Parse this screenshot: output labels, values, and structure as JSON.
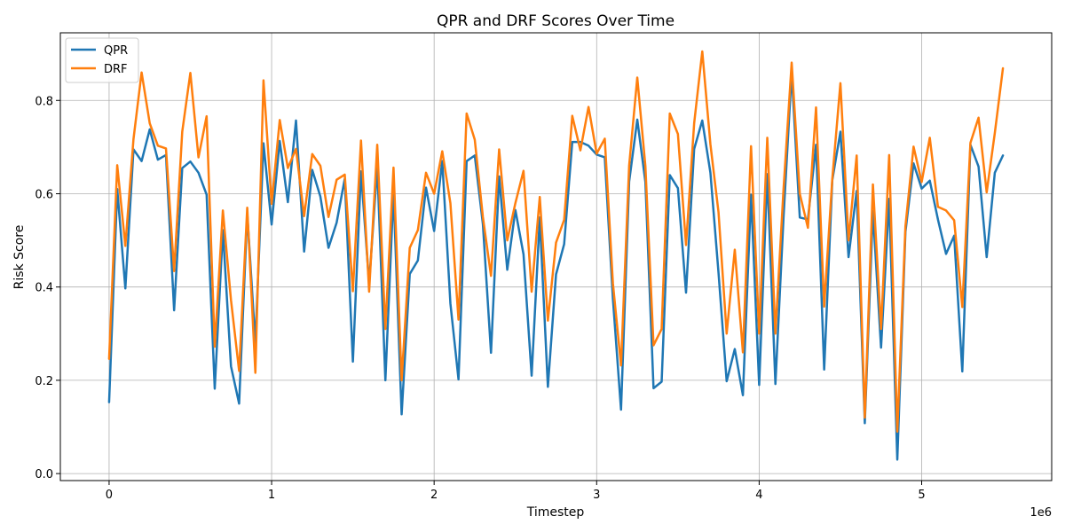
{
  "chart_data": {
    "type": "line",
    "title": "QPR and DRF Scores Over Time",
    "xlabel": "Timestep",
    "ylabel": "Risk Score",
    "x_offset_label": "1e6",
    "xlim": [
      -300000,
      5800000
    ],
    "ylim": [
      -0.015,
      0.945
    ],
    "x_ticks": [
      0,
      1,
      2,
      3,
      4,
      5
    ],
    "y_ticks": [
      0.0,
      0.2,
      0.4,
      0.6,
      0.8
    ],
    "y_tick_labels": [
      "0.0",
      "0.2",
      "0.4",
      "0.6",
      "0.8"
    ],
    "grid": true,
    "legend_position": "top-left",
    "x": [
      0,
      50000,
      100000,
      150000,
      200000,
      250000,
      300000,
      350000,
      400000,
      450000,
      500000,
      550000,
      600000,
      650000,
      700000,
      750000,
      800000,
      850000,
      900000,
      950000,
      1000000,
      1050000,
      1100000,
      1150000,
      1200000,
      1250000,
      1300000,
      1350000,
      1400000,
      1450000,
      1500000,
      1550000,
      1600000,
      1650000,
      1700000,
      1750000,
      1800000,
      1850000,
      1900000,
      1950000,
      2000000,
      2050000,
      2100000,
      2150000,
      2200000,
      2250000,
      2300000,
      2350000,
      2400000,
      2450000,
      2500000,
      2550000,
      2600000,
      2650000,
      2700000,
      2750000,
      2800000,
      2850000,
      2900000,
      2950000,
      3000000,
      3050000,
      3100000,
      3150000,
      3200000,
      3250000,
      3300000,
      3350000,
      3400000,
      3450000,
      3500000,
      3550000,
      3600000,
      3650000,
      3700000,
      3750000,
      3800000,
      3850000,
      3900000,
      3950000,
      4000000,
      4050000,
      4100000,
      4150000,
      4200000,
      4250000,
      4300000,
      4350000,
      4400000,
      4450000,
      4500000,
      4550000,
      4600000,
      4650000,
      4700000,
      4750000,
      4800000,
      4850000,
      4900000,
      4950000,
      5000000,
      5050000,
      5100000,
      5150000,
      5200000,
      5250000,
      5300000,
      5350000,
      5400000,
      5450000,
      5500000
    ],
    "series": [
      {
        "name": "QPR",
        "color": "#1f77b4",
        "values": [
          0.153,
          0.61,
          0.397,
          0.695,
          0.67,
          0.738,
          0.673,
          0.683,
          0.35,
          0.655,
          0.669,
          0.645,
          0.598,
          0.182,
          0.522,
          0.23,
          0.15,
          0.558,
          0.28,
          0.708,
          0.534,
          0.713,
          0.582,
          0.757,
          0.476,
          0.651,
          0.594,
          0.484,
          0.538,
          0.632,
          0.24,
          0.648,
          0.407,
          0.659,
          0.2,
          0.604,
          0.127,
          0.428,
          0.457,
          0.613,
          0.52,
          0.67,
          0.365,
          0.202,
          0.67,
          0.682,
          0.535,
          0.259,
          0.637,
          0.437,
          0.565,
          0.47,
          0.21,
          0.549,
          0.186,
          0.427,
          0.492,
          0.711,
          0.711,
          0.703,
          0.684,
          0.678,
          0.375,
          0.137,
          0.626,
          0.759,
          0.625,
          0.183,
          0.197,
          0.64,
          0.612,
          0.388,
          0.696,
          0.757,
          0.645,
          0.43,
          0.198,
          0.267,
          0.168,
          0.598,
          0.19,
          0.642,
          0.192,
          0.55,
          0.86,
          0.549,
          0.545,
          0.705,
          0.223,
          0.629,
          0.733,
          0.464,
          0.606,
          0.108,
          0.563,
          0.27,
          0.589,
          0.03,
          0.518,
          0.665,
          0.611,
          0.628,
          0.545,
          0.471,
          0.51,
          0.219,
          0.705,
          0.658,
          0.464,
          0.645,
          0.682
        ]
      },
      {
        "name": "DRF",
        "color": "#ff7f0e",
        "values": [
          0.246,
          0.661,
          0.488,
          0.717,
          0.86,
          0.751,
          0.703,
          0.697,
          0.434,
          0.733,
          0.859,
          0.678,
          0.766,
          0.272,
          0.564,
          0.372,
          0.22,
          0.57,
          0.216,
          0.843,
          0.578,
          0.758,
          0.655,
          0.696,
          0.552,
          0.685,
          0.66,
          0.55,
          0.63,
          0.641,
          0.391,
          0.714,
          0.39,
          0.705,
          0.31,
          0.656,
          0.2,
          0.484,
          0.522,
          0.645,
          0.6,
          0.691,
          0.58,
          0.33,
          0.772,
          0.716,
          0.55,
          0.424,
          0.695,
          0.5,
          0.58,
          0.649,
          0.39,
          0.593,
          0.328,
          0.495,
          0.544,
          0.767,
          0.693,
          0.786,
          0.686,
          0.718,
          0.408,
          0.232,
          0.66,
          0.849,
          0.659,
          0.275,
          0.31,
          0.772,
          0.728,
          0.49,
          0.751,
          0.905,
          0.706,
          0.56,
          0.3,
          0.48,
          0.26,
          0.702,
          0.3,
          0.72,
          0.3,
          0.61,
          0.881,
          0.6,
          0.527,
          0.785,
          0.358,
          0.632,
          0.837,
          0.5,
          0.682,
          0.12,
          0.62,
          0.31,
          0.683,
          0.09,
          0.53,
          0.701,
          0.625,
          0.72,
          0.572,
          0.564,
          0.543,
          0.357,
          0.709,
          0.763,
          0.603,
          0.73,
          0.869
        ]
      }
    ]
  }
}
